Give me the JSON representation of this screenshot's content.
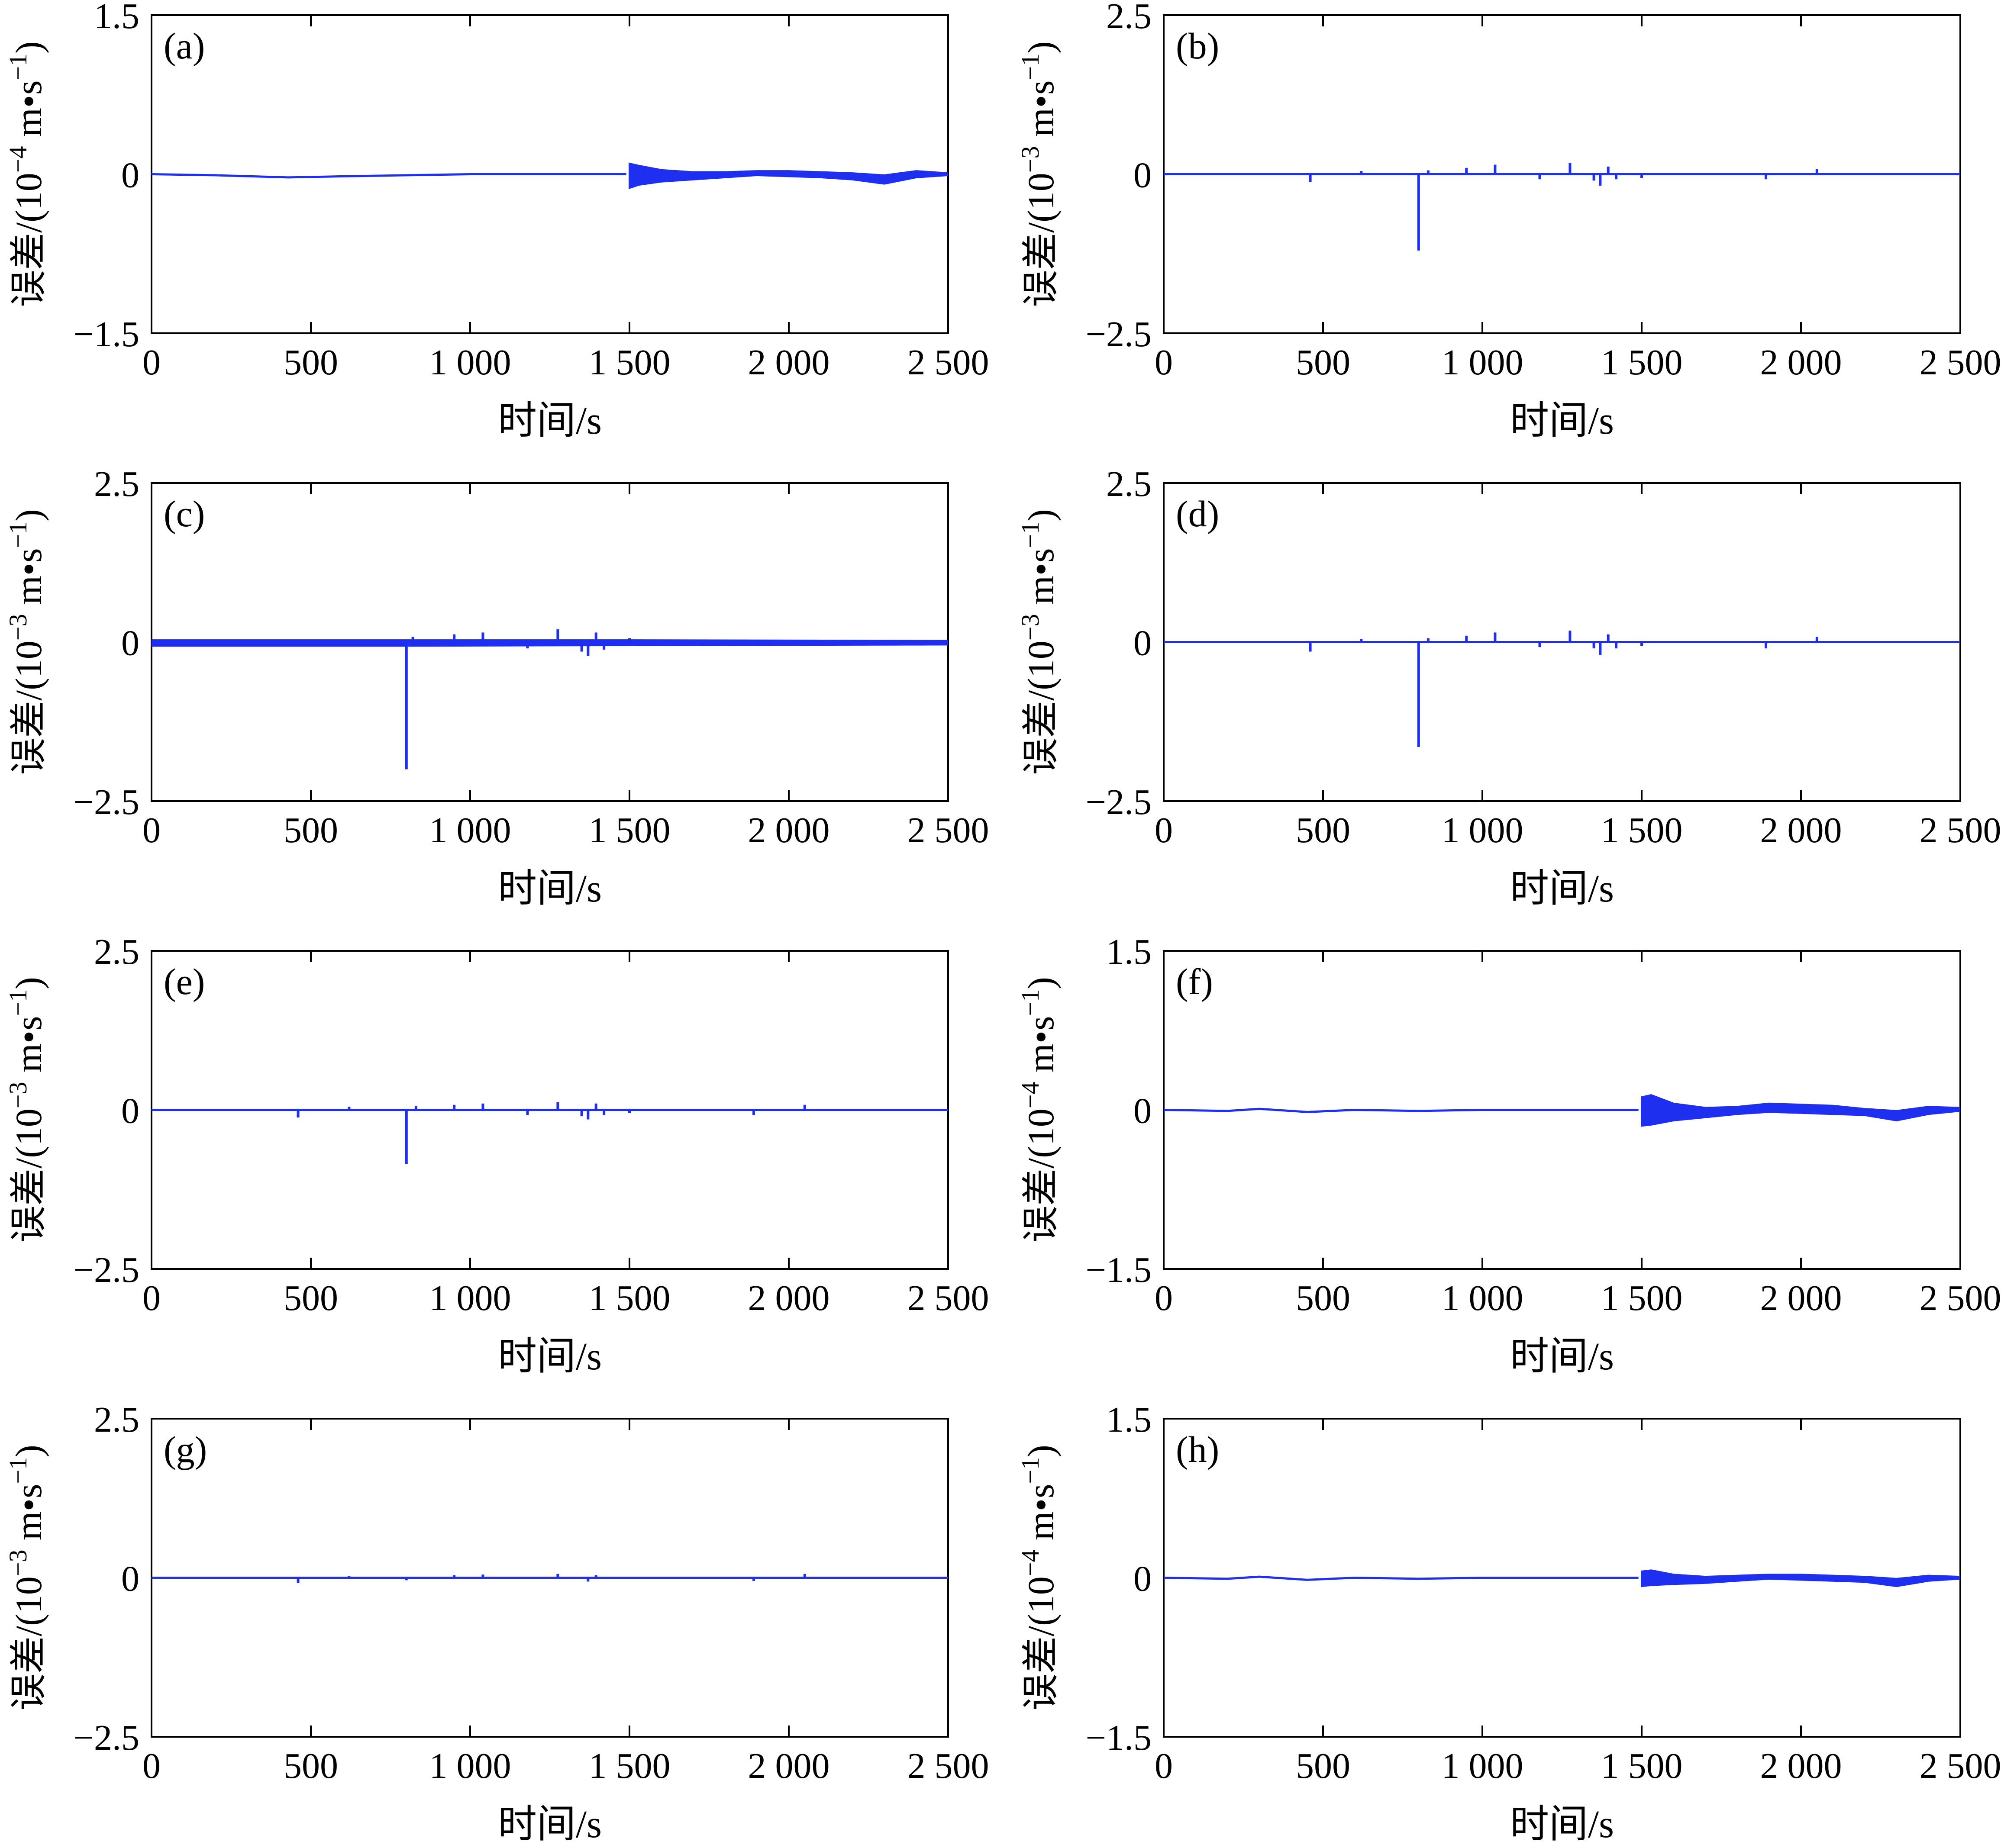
{
  "line_color": "#1f2ff0",
  "chart_data": [
    {
      "type": "line",
      "panel": "(a)",
      "xlabel": "时间/s",
      "ylabel_main": "误差/(10",
      "ylabel_exp": "−4",
      "ylabel_unit": " m•s",
      "ylabel_unit_exp": "−1",
      "ylabel_close": ")",
      "xlim": [
        0,
        2500
      ],
      "ylim": [
        -1.5,
        1.5
      ],
      "x_ticks": [
        0,
        500,
        1000,
        1500,
        2000,
        2500
      ],
      "x_tick_labels": [
        "0",
        "500",
        "1 000",
        "1 500",
        "2 000",
        "2 500"
      ],
      "y_ticks": [
        -1.5,
        0,
        1.5
      ],
      "y_tick_labels": [
        "−1.5",
        "0",
        "1.5"
      ],
      "baseline": [
        [
          0,
          0.0
        ],
        [
          200,
          -0.01
        ],
        [
          430,
          -0.03
        ],
        [
          600,
          -0.02
        ],
        [
          800,
          -0.01
        ],
        [
          1000,
          0.0
        ],
        [
          1200,
          0.0
        ],
        [
          1490,
          0.0
        ]
      ],
      "envelope": [
        [
          1500,
          0.1,
          -0.13
        ],
        [
          1530,
          0.08,
          -0.1
        ],
        [
          1600,
          0.04,
          -0.07
        ],
        [
          1700,
          0.02,
          -0.05
        ],
        [
          1800,
          0.02,
          -0.03
        ],
        [
          1900,
          0.03,
          -0.01
        ],
        [
          2000,
          0.03,
          -0.02
        ],
        [
          2100,
          0.02,
          -0.03
        ],
        [
          2200,
          0.01,
          -0.05
        ],
        [
          2300,
          -0.01,
          -0.09
        ],
        [
          2400,
          0.03,
          -0.03
        ],
        [
          2500,
          0.01,
          -0.01
        ]
      ],
      "spikes": []
    },
    {
      "type": "line",
      "panel": "(b)",
      "xlabel": "时间/s",
      "ylabel_main": "误差/(10",
      "ylabel_exp": "−3",
      "ylabel_unit": " m•s",
      "ylabel_unit_exp": "−1",
      "ylabel_close": ")",
      "xlim": [
        0,
        2500
      ],
      "ylim": [
        -2.5,
        2.5
      ],
      "x_ticks": [
        0,
        500,
        1000,
        1500,
        2000,
        2500
      ],
      "x_tick_labels": [
        "0",
        "500",
        "1 000",
        "1 500",
        "2 000",
        "2 500"
      ],
      "y_ticks": [
        -2.5,
        0,
        2.5
      ],
      "y_tick_labels": [
        "−2.5",
        "0",
        "2.5"
      ],
      "baseline": [
        [
          0,
          0
        ],
        [
          2500,
          0
        ]
      ],
      "envelope": [],
      "spikes": [
        [
          460,
          -0.12
        ],
        [
          620,
          0.05
        ],
        [
          800,
          -1.2
        ],
        [
          830,
          0.06
        ],
        [
          950,
          0.1
        ],
        [
          1040,
          0.15
        ],
        [
          1180,
          -0.08
        ],
        [
          1275,
          0.18
        ],
        [
          1350,
          -0.1
        ],
        [
          1370,
          -0.18
        ],
        [
          1395,
          0.12
        ],
        [
          1420,
          -0.08
        ],
        [
          1500,
          -0.06
        ],
        [
          1890,
          -0.08
        ],
        [
          2050,
          0.08
        ]
      ]
    },
    {
      "type": "line",
      "panel": "(c)",
      "xlabel": "时间/s",
      "ylabel_main": "误差/(10",
      "ylabel_exp": "−3",
      "ylabel_unit": " m•s",
      "ylabel_unit_exp": "−1",
      "ylabel_close": ")",
      "xlim": [
        0,
        2500
      ],
      "ylim": [
        -2.5,
        2.5
      ],
      "x_ticks": [
        0,
        500,
        1000,
        1500,
        2000,
        2500
      ],
      "x_tick_labels": [
        "0",
        "500",
        "1 000",
        "1 500",
        "2 000",
        "2 500"
      ],
      "y_ticks": [
        -2.5,
        0,
        2.5
      ],
      "y_tick_labels": [
        "−2.5",
        "0",
        "2.5"
      ],
      "baseline": [
        [
          0,
          0
        ],
        [
          2500,
          0
        ]
      ],
      "envelope": [
        [
          0,
          0.03,
          -0.06
        ],
        [
          800,
          0.03,
          -0.06
        ],
        [
          1500,
          0.03,
          -0.05
        ],
        [
          2500,
          0.02,
          -0.04
        ]
      ],
      "spikes": [
        [
          800,
          -2.0
        ],
        [
          820,
          0.08
        ],
        [
          950,
          0.12
        ],
        [
          1040,
          0.15
        ],
        [
          1180,
          -0.1
        ],
        [
          1275,
          0.2
        ],
        [
          1350,
          -0.15
        ],
        [
          1370,
          -0.22
        ],
        [
          1395,
          0.15
        ],
        [
          1420,
          -0.12
        ],
        [
          1500,
          0.06
        ]
      ]
    },
    {
      "type": "line",
      "panel": "(d)",
      "xlabel": "时间/s",
      "ylabel_main": "误差/(10",
      "ylabel_exp": "−3",
      "ylabel_unit": " m•s",
      "ylabel_unit_exp": "−1",
      "ylabel_close": ")",
      "xlim": [
        0,
        2500
      ],
      "ylim": [
        -2.5,
        2.5
      ],
      "x_ticks": [
        0,
        500,
        1000,
        1500,
        2000,
        2500
      ],
      "x_tick_labels": [
        "0",
        "500",
        "1 000",
        "1 500",
        "2 000",
        "2 500"
      ],
      "y_ticks": [
        -2.5,
        0,
        2.5
      ],
      "y_tick_labels": [
        "−2.5",
        "0",
        "2.5"
      ],
      "baseline": [
        [
          0,
          0
        ],
        [
          2500,
          0
        ]
      ],
      "envelope": [],
      "spikes": [
        [
          460,
          -0.15
        ],
        [
          620,
          0.05
        ],
        [
          800,
          -1.65
        ],
        [
          830,
          0.06
        ],
        [
          950,
          0.1
        ],
        [
          1040,
          0.15
        ],
        [
          1180,
          -0.08
        ],
        [
          1275,
          0.18
        ],
        [
          1350,
          -0.1
        ],
        [
          1370,
          -0.2
        ],
        [
          1395,
          0.12
        ],
        [
          1420,
          -0.1
        ],
        [
          1500,
          -0.06
        ],
        [
          1890,
          -0.1
        ],
        [
          2050,
          0.08
        ]
      ]
    },
    {
      "type": "line",
      "panel": "(e)",
      "xlabel": "时间/s",
      "ylabel_main": "误差/(10",
      "ylabel_exp": "−3",
      "ylabel_unit": " m•s",
      "ylabel_unit_exp": "−1",
      "ylabel_close": ")",
      "xlim": [
        0,
        2500
      ],
      "ylim": [
        -2.5,
        2.5
      ],
      "x_ticks": [
        0,
        500,
        1000,
        1500,
        2000,
        2500
      ],
      "x_tick_labels": [
        "0",
        "500",
        "1 000",
        "1 500",
        "2 000",
        "2 500"
      ],
      "y_ticks": [
        -2.5,
        0,
        2.5
      ],
      "y_tick_labels": [
        "−2.5",
        "0",
        "2.5"
      ],
      "baseline": [
        [
          0,
          0
        ],
        [
          2500,
          0
        ]
      ],
      "envelope": [],
      "spikes": [
        [
          460,
          -0.12
        ],
        [
          620,
          0.05
        ],
        [
          800,
          -0.85
        ],
        [
          830,
          0.06
        ],
        [
          950,
          0.08
        ],
        [
          1040,
          0.1
        ],
        [
          1180,
          -0.08
        ],
        [
          1275,
          0.12
        ],
        [
          1350,
          -0.1
        ],
        [
          1370,
          -0.15
        ],
        [
          1395,
          0.1
        ],
        [
          1420,
          -0.08
        ],
        [
          1500,
          -0.05
        ],
        [
          1890,
          -0.08
        ],
        [
          2050,
          0.08
        ]
      ]
    },
    {
      "type": "line",
      "panel": "(f)",
      "xlabel": "时间/s",
      "ylabel_main": "误差/(10",
      "ylabel_exp": "−4",
      "ylabel_unit": " m•s",
      "ylabel_unit_exp": "−1",
      "ylabel_close": ")",
      "xlim": [
        0,
        2500
      ],
      "ylim": [
        -1.5,
        1.5
      ],
      "x_ticks": [
        0,
        500,
        1000,
        1500,
        2000,
        2500
      ],
      "x_tick_labels": [
        "0",
        "500",
        "1 000",
        "1 500",
        "2 000",
        "2 500"
      ],
      "y_ticks": [
        -1.5,
        0,
        1.5
      ],
      "y_tick_labels": [
        "−1.5",
        "0",
        "1.5"
      ],
      "baseline": [
        [
          0,
          0.0
        ],
        [
          200,
          -0.01
        ],
        [
          300,
          0.01
        ],
        [
          450,
          -0.02
        ],
        [
          600,
          0.0
        ],
        [
          800,
          -0.01
        ],
        [
          1000,
          0.0
        ],
        [
          1200,
          0.0
        ],
        [
          1490,
          0.0
        ]
      ],
      "envelope": [
        [
          1500,
          0.12,
          -0.15
        ],
        [
          1530,
          0.14,
          -0.14
        ],
        [
          1600,
          0.06,
          -0.1
        ],
        [
          1700,
          0.02,
          -0.07
        ],
        [
          1800,
          0.03,
          -0.04
        ],
        [
          1900,
          0.06,
          -0.02
        ],
        [
          2000,
          0.05,
          -0.03
        ],
        [
          2100,
          0.04,
          -0.04
        ],
        [
          2200,
          0.01,
          -0.05
        ],
        [
          2300,
          -0.01,
          -0.1
        ],
        [
          2400,
          0.03,
          -0.04
        ],
        [
          2500,
          0.02,
          -0.01
        ]
      ],
      "spikes": []
    },
    {
      "type": "line",
      "panel": "(g)",
      "xlabel": "时间/s",
      "ylabel_main": "误差/(10",
      "ylabel_exp": "−3",
      "ylabel_unit": " m•s",
      "ylabel_unit_exp": "−1",
      "ylabel_close": ")",
      "xlim": [
        0,
        2500
      ],
      "ylim": [
        -2.5,
        2.5
      ],
      "x_ticks": [
        0,
        500,
        1000,
        1500,
        2000,
        2500
      ],
      "x_tick_labels": [
        "0",
        "500",
        "1 000",
        "1 500",
        "2 000",
        "2 500"
      ],
      "y_ticks": [
        -2.5,
        0,
        2.5
      ],
      "y_tick_labels": [
        "−2.5",
        "0",
        "2.5"
      ],
      "baseline": [
        [
          0,
          0
        ],
        [
          2500,
          0
        ]
      ],
      "envelope": [],
      "spikes": [
        [
          460,
          -0.08
        ],
        [
          620,
          0.03
        ],
        [
          800,
          -0.04
        ],
        [
          950,
          0.04
        ],
        [
          1040,
          0.05
        ],
        [
          1275,
          0.06
        ],
        [
          1370,
          -0.06
        ],
        [
          1395,
          0.04
        ],
        [
          1890,
          -0.05
        ],
        [
          2050,
          0.06
        ]
      ]
    },
    {
      "type": "line",
      "panel": "(h)",
      "xlabel": "时间/s",
      "ylabel_main": "误差/(10",
      "ylabel_exp": "−4",
      "ylabel_unit": " m•s",
      "ylabel_unit_exp": "−1",
      "ylabel_close": ")",
      "xlim": [
        0,
        2500
      ],
      "ylim": [
        -1.5,
        1.5
      ],
      "x_ticks": [
        0,
        500,
        1000,
        1500,
        2000,
        2500
      ],
      "x_tick_labels": [
        "0",
        "500",
        "1 000",
        "1 500",
        "2 000",
        "2 500"
      ],
      "y_ticks": [
        -1.5,
        0,
        1.5
      ],
      "y_tick_labels": [
        "−1.5",
        "0",
        "1.5"
      ],
      "baseline": [
        [
          0,
          0.0
        ],
        [
          200,
          -0.01
        ],
        [
          300,
          0.01
        ],
        [
          450,
          -0.02
        ],
        [
          600,
          0.0
        ],
        [
          800,
          -0.01
        ],
        [
          1000,
          0.0
        ],
        [
          1200,
          0.0
        ],
        [
          1490,
          0.0
        ]
      ],
      "envelope": [
        [
          1500,
          0.06,
          -0.08
        ],
        [
          1530,
          0.07,
          -0.07
        ],
        [
          1600,
          0.03,
          -0.06
        ],
        [
          1700,
          0.01,
          -0.05
        ],
        [
          1800,
          0.02,
          -0.03
        ],
        [
          1900,
          0.03,
          -0.01
        ],
        [
          2000,
          0.03,
          -0.02
        ],
        [
          2100,
          0.02,
          -0.03
        ],
        [
          2200,
          0.01,
          -0.04
        ],
        [
          2300,
          -0.01,
          -0.08
        ],
        [
          2400,
          0.02,
          -0.03
        ],
        [
          2500,
          0.01,
          -0.01
        ]
      ],
      "spikes": []
    }
  ]
}
